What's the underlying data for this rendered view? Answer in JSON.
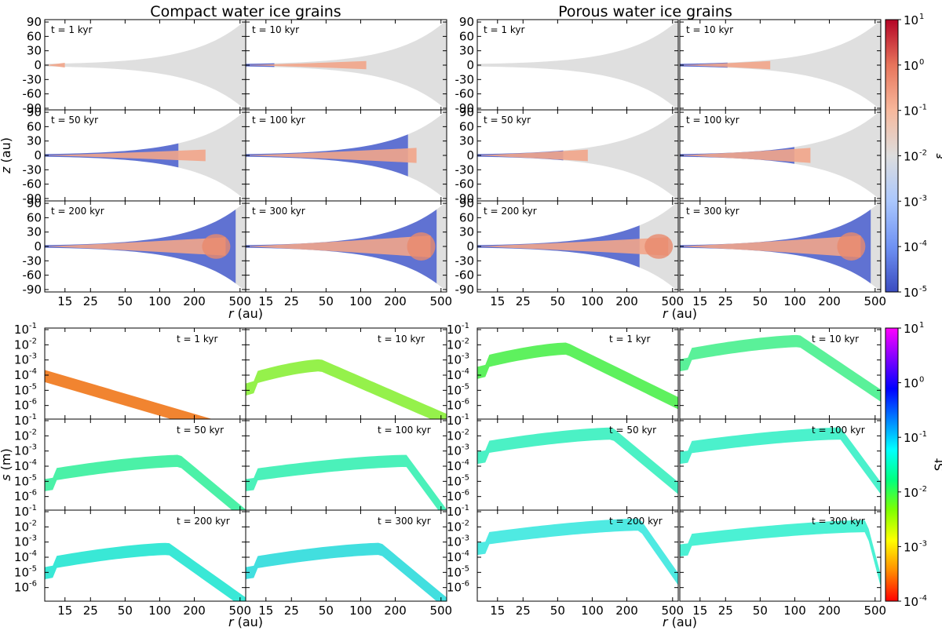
{
  "titles": {
    "compact": "Compact water ice grains",
    "porous": "Porous water ice grains"
  },
  "axes": {
    "z_label_var": "z",
    "z_label_unit": " (au)",
    "s_label_var": "s",
    "s_label_unit": " (m)",
    "r_label_var": "r",
    "r_label_unit": " (au)",
    "r_ticks": [
      "15",
      "25",
      "50",
      "100",
      "200",
      "500"
    ],
    "z_ticks": [
      "90",
      "60",
      "30",
      "0",
      "-30",
      "-60",
      "-90"
    ]
  },
  "colorbars": {
    "epsilon": {
      "label": "ε",
      "scale": "log",
      "range": [
        1e-05,
        10
      ],
      "tick_exponents": [
        "1",
        "0",
        "-1",
        "-2",
        "-3",
        "-4",
        "-5"
      ],
      "colors": [
        "#3b4cc0",
        "#6f92f3",
        "#aac7fd",
        "#dddddd",
        "#f7b89c",
        "#e7745b",
        "#b40426"
      ]
    },
    "stokes": {
      "label": "St",
      "scale": "log",
      "range": [
        0.0001,
        10
      ],
      "tick_exponents": [
        "1",
        "0",
        "-1",
        "-2",
        "-3",
        "-4"
      ],
      "colors": [
        "#ff0000",
        "#ff8c00",
        "#ffff00",
        "#7fff00",
        "#00ff7f",
        "#00ffff",
        "#0080ff",
        "#0000ff",
        "#8000ff",
        "#ff00ff"
      ]
    }
  },
  "chart_data": [
    {
      "type": "scatter",
      "id": "density_maps",
      "description_axes": {
        "x": "r (au)",
        "y": "z (au)"
      },
      "xscale": "log",
      "xlim": [
        10,
        560
      ],
      "ylim": [
        -95,
        95
      ],
      "panels": [
        {
          "material": "compact",
          "time": "t = 1 kyr"
        },
        {
          "material": "compact",
          "time": "t = 10 kyr"
        },
        {
          "material": "compact",
          "time": "t = 50 kyr"
        },
        {
          "material": "compact",
          "time": "t = 100 kyr"
        },
        {
          "material": "compact",
          "time": "t = 200 kyr"
        },
        {
          "material": "compact",
          "time": "t = 300 kyr"
        },
        {
          "material": "porous",
          "time": "t = 1 kyr"
        },
        {
          "material": "porous",
          "time": "t = 10 kyr"
        },
        {
          "material": "porous",
          "time": "t = 50 kyr"
        },
        {
          "material": "porous",
          "time": "t = 100 kyr"
        },
        {
          "material": "porous",
          "time": "t = 200 kyr"
        },
        {
          "material": "porous",
          "time": "t = 300 kyr"
        }
      ]
    },
    {
      "type": "scatter",
      "id": "size_distributions",
      "description_axes": {
        "x": "r (au)",
        "y": "s (m)"
      },
      "xscale": "log",
      "yscale": "log",
      "xlim": [
        10,
        560
      ],
      "ylim": [
        1e-07,
        0.1
      ],
      "y_tick_exponents": [
        "-1",
        "-2",
        "-3",
        "-4",
        "-5",
        "-6"
      ],
      "panels": [
        {
          "material": "compact",
          "time": "t = 1 kyr"
        },
        {
          "material": "compact",
          "time": "t = 10 kyr"
        },
        {
          "material": "compact",
          "time": "t = 50 kyr"
        },
        {
          "material": "compact",
          "time": "t = 100 kyr"
        },
        {
          "material": "compact",
          "time": "t = 200 kyr"
        },
        {
          "material": "compact",
          "time": "t = 300 kyr"
        },
        {
          "material": "porous",
          "time": "t = 1 kyr"
        },
        {
          "material": "porous",
          "time": "t = 10 kyr"
        },
        {
          "material": "porous",
          "time": "t = 50 kyr"
        },
        {
          "material": "porous",
          "time": "t = 100 kyr"
        },
        {
          "material": "porous",
          "time": "t = 200 kyr"
        },
        {
          "material": "porous",
          "time": "t = 300 kyr"
        }
      ]
    }
  ]
}
